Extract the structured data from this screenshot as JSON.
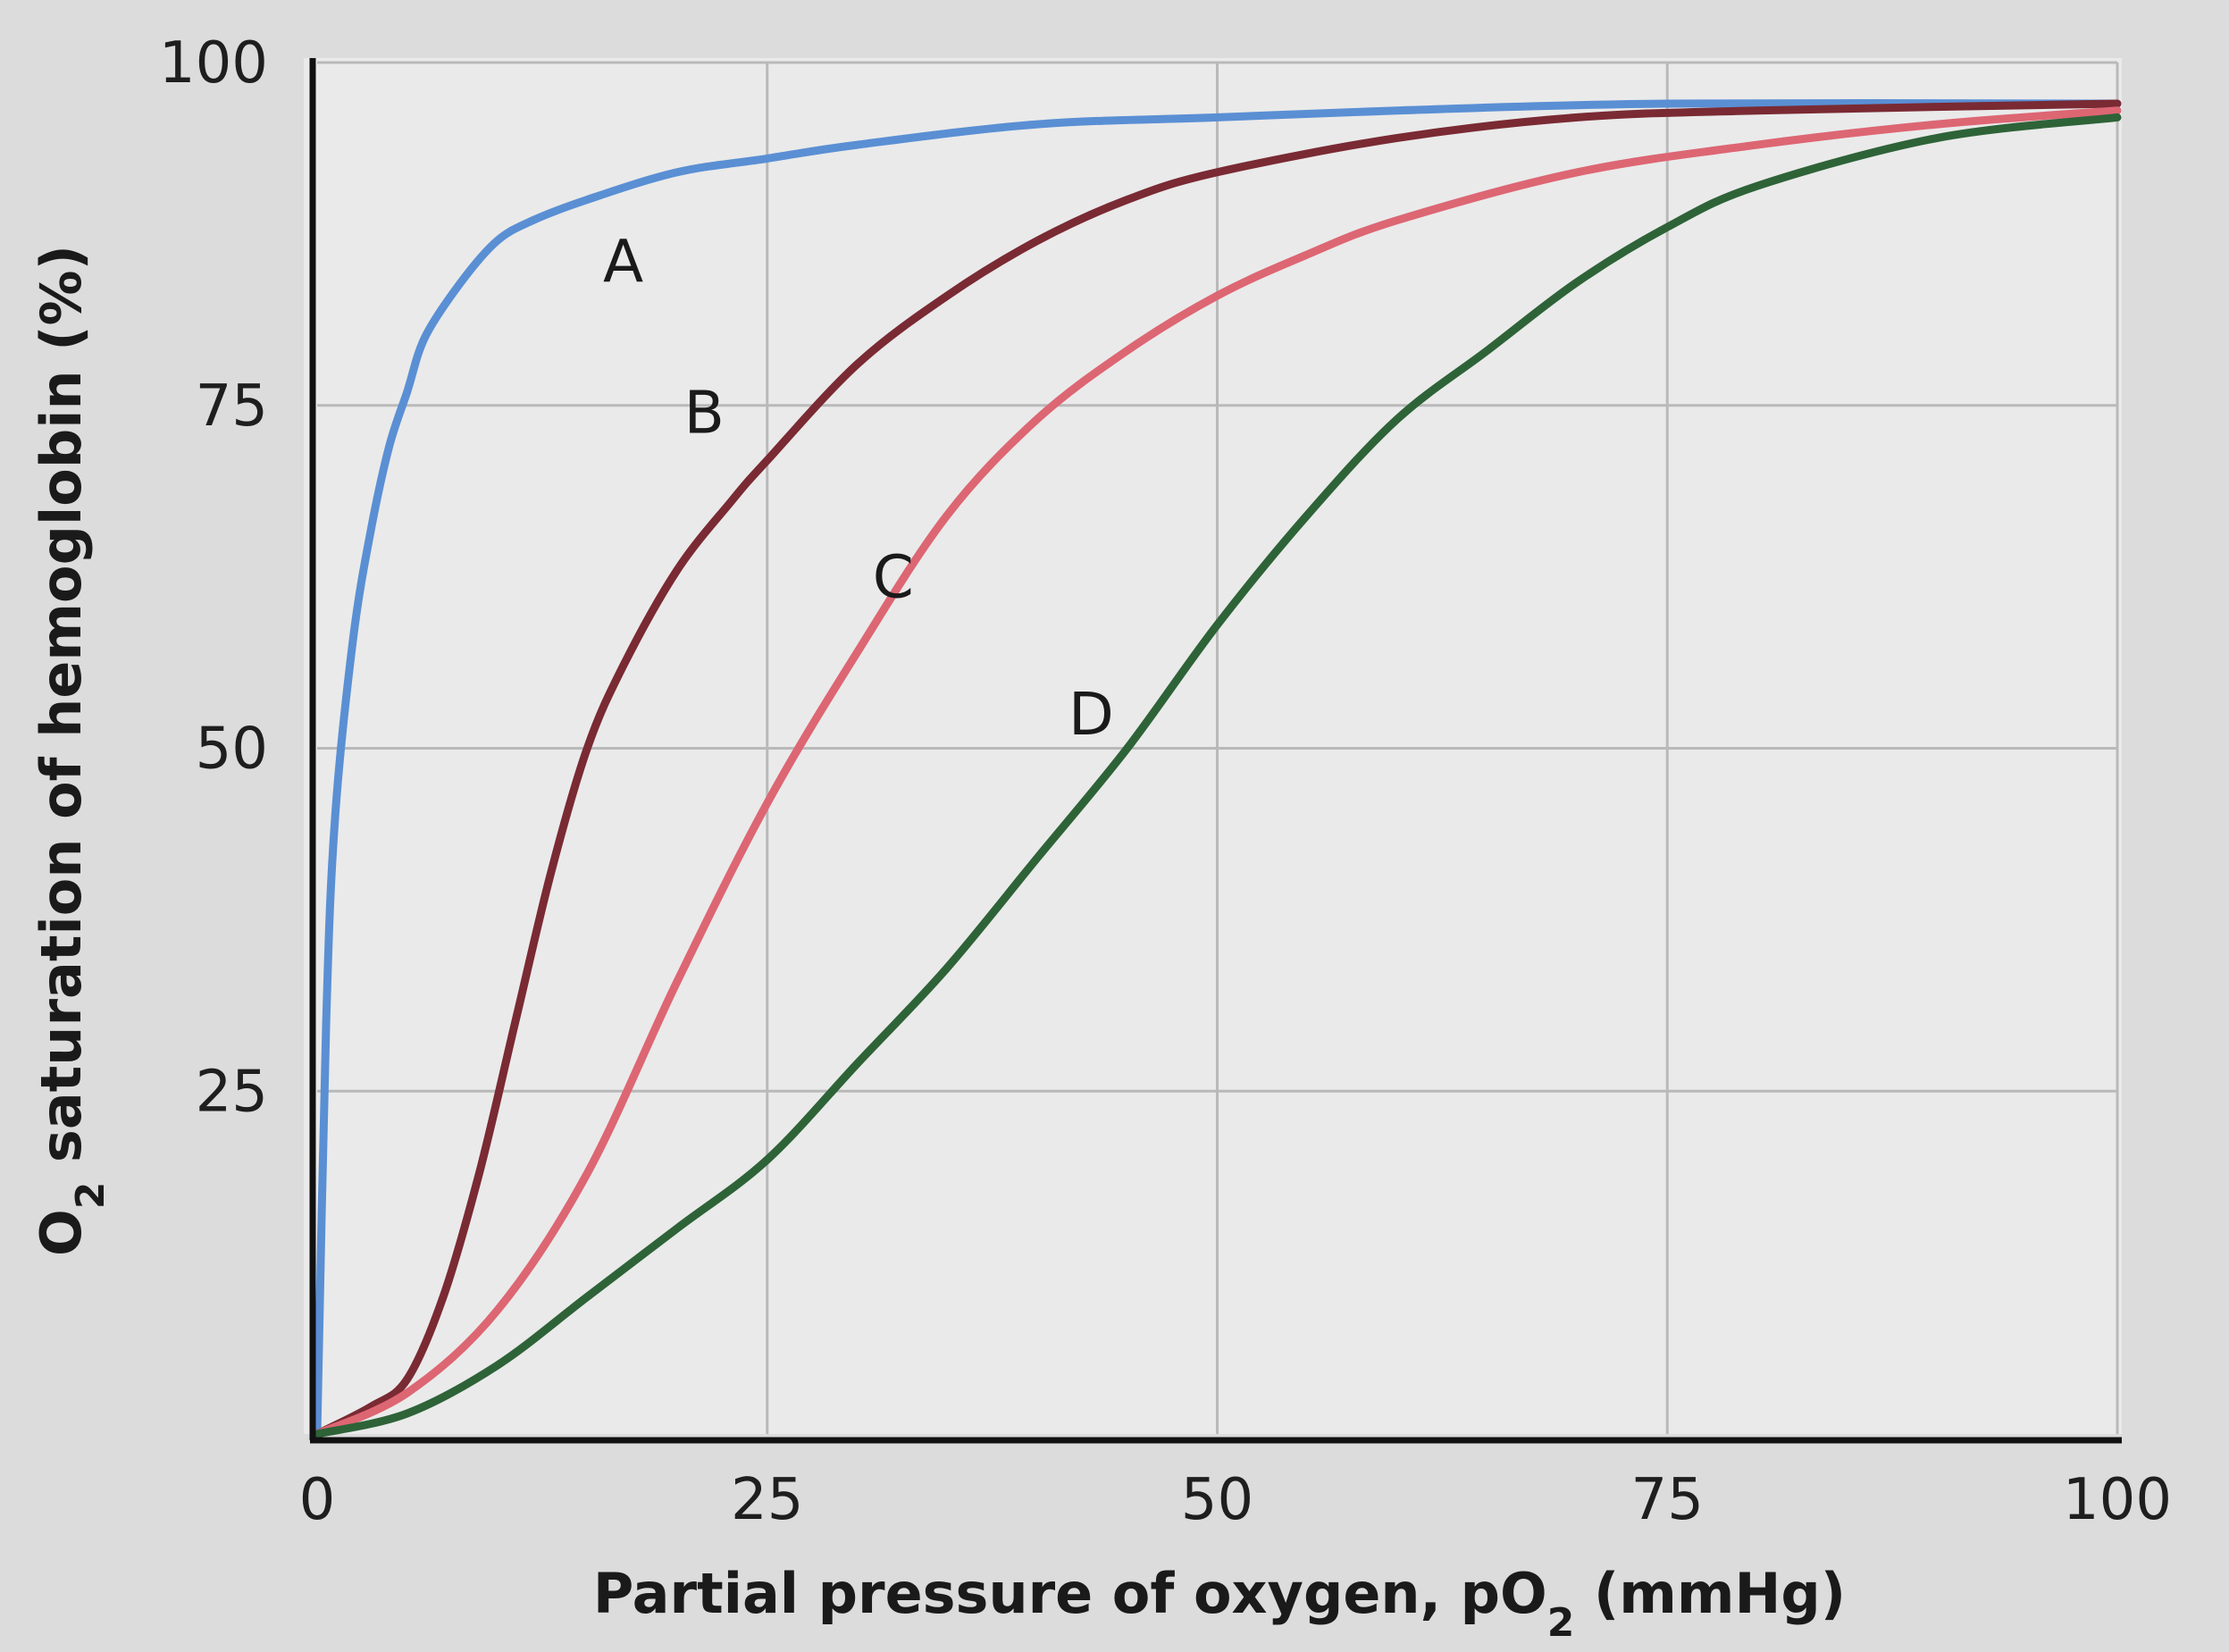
{
  "chart_data": {
    "type": "line",
    "title": "",
    "xlabel": "Partial pressure of oxygen, pO",
    "xlabel_sub": "2",
    "xlabel_tail": " (mmHg)",
    "ylabel_prefix": "O",
    "ylabel_sub": "2",
    "ylabel": " saturation of hemoglobin (%)",
    "xlim": [
      0,
      100
    ],
    "ylim": [
      0,
      100
    ],
    "x_ticks": [
      "0",
      "25",
      "50",
      "75",
      "100"
    ],
    "y_ticks": [
      "25",
      "50",
      "75",
      "100"
    ],
    "grid": true,
    "legend": "none (curves labeled directly)",
    "series": [
      {
        "name": "A",
        "color": "#5a8fd4",
        "x": [
          0,
          0.5,
          1,
          2,
          3,
          4,
          5,
          6,
          8,
          10,
          12,
          15,
          20,
          25,
          30,
          40,
          50,
          60,
          75,
          100
        ],
        "y": [
          0,
          30,
          45,
          58,
          66,
          72,
          76,
          80,
          84,
          87,
          88.5,
          90,
          92,
          93,
          94,
          95.5,
          96,
          96.5,
          97,
          97
        ]
      },
      {
        "name": "B",
        "color": "#7a2a33",
        "x": [
          0,
          3,
          5,
          7,
          9,
          11,
          13,
          15,
          17,
          20,
          23,
          25,
          30,
          35,
          40,
          45,
          50,
          60,
          70,
          80,
          100
        ],
        "y": [
          0,
          2,
          4,
          10,
          19,
          30,
          41,
          50,
          56,
          63,
          68,
          71,
          78,
          83,
          87,
          90,
          92,
          94.5,
          96,
          96.5,
          97
        ]
      },
      {
        "name": "C",
        "color": "#dd6673",
        "x": [
          0,
          5,
          10,
          15,
          20,
          25,
          30,
          35,
          40,
          45,
          50,
          55,
          60,
          70,
          80,
          90,
          100
        ],
        "y": [
          0,
          3,
          9,
          19,
          33,
          46,
          57,
          67,
          74,
          79,
          83,
          86,
          88.5,
          92,
          94,
          95.5,
          96.5
        ]
      },
      {
        "name": "D",
        "color": "#2e6338",
        "x": [
          0,
          5,
          10,
          15,
          20,
          25,
          30,
          35,
          40,
          45,
          50,
          55,
          60,
          65,
          70,
          75,
          80,
          90,
          100
        ],
        "y": [
          0,
          1.5,
          5,
          10,
          15,
          20,
          27,
          34,
          42,
          50,
          59,
          67,
          74,
          79,
          84,
          88,
          91,
          94.5,
          96
        ]
      }
    ]
  }
}
